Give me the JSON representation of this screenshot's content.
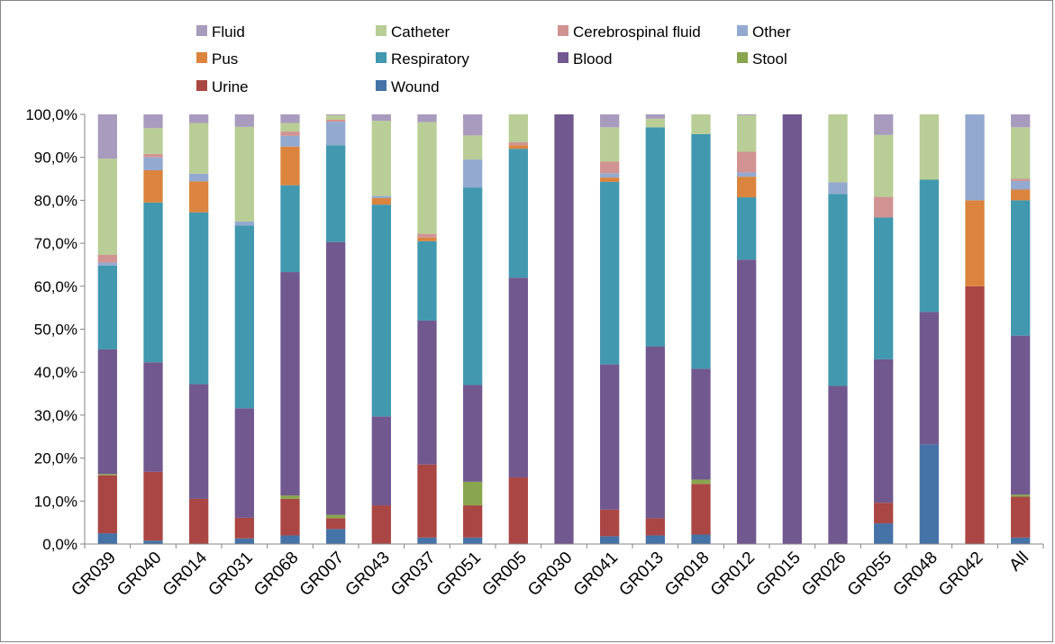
{
  "chart_data": {
    "type": "bar",
    "stacked": true,
    "normalized": true,
    "title": "",
    "xlabel": "",
    "ylabel": "",
    "ylim": [
      0,
      100
    ],
    "y_ticks": [
      "0,0%",
      "10,0%",
      "20,0%",
      "30,0%",
      "40,0%",
      "50,0%",
      "60,0%",
      "70,0%",
      "80,0%",
      "90,0%",
      "100,0%"
    ],
    "grid": false,
    "legend_position": "top",
    "categories": [
      "GR039",
      "GR040",
      "GR014",
      "GR031",
      "GR068",
      "GR007",
      "GR043",
      "GR037",
      "GR051",
      "GR005",
      "GR030",
      "GR041",
      "GR013",
      "GR018",
      "GR012",
      "GR015",
      "GR026",
      "GR055",
      "GR048",
      "GR042",
      "All"
    ],
    "legend": [
      "Fluid",
      "Catheter",
      "Cerebrospinal fluid",
      "Other",
      "Pus",
      "Respiratory",
      "Blood",
      "Stool",
      "Urine",
      "Wound"
    ],
    "series": [
      {
        "name": "Wound",
        "color": "#4572A7",
        "values": [
          2.5,
          0.8,
          0,
          1.3,
          2.0,
          3.5,
          0,
          1.5,
          1.5,
          0,
          0,
          1.8,
          2.0,
          2.2,
          0,
          0,
          0,
          4.8,
          23.2,
          0,
          1.5
        ]
      },
      {
        "name": "Urine",
        "color": "#AA4643",
        "values": [
          13.5,
          16.0,
          10.5,
          4.8,
          8.5,
          2.5,
          9.0,
          17.0,
          7.5,
          15.5,
          0,
          6.2,
          4.0,
          11.8,
          0,
          0,
          0,
          4.8,
          0,
          60.0,
          9.5
        ]
      },
      {
        "name": "Stool",
        "color": "#89A54E",
        "values": [
          0.3,
          0,
          0,
          0,
          0.8,
          0.8,
          0,
          0,
          5.5,
          0,
          0,
          0,
          0,
          1.0,
          0,
          0,
          0,
          0,
          0,
          0,
          0.5
        ]
      },
      {
        "name": "Blood",
        "color": "#71588F",
        "values": [
          29.0,
          25.5,
          26.7,
          25.5,
          52.0,
          63.5,
          20.7,
          33.5,
          22.5,
          46.5,
          100,
          33.8,
          40.0,
          25.8,
          66.2,
          100,
          36.8,
          33.4,
          30.8,
          0,
          37.0
        ]
      },
      {
        "name": "Respiratory",
        "color": "#4198AF",
        "values": [
          19.5,
          37.2,
          40.0,
          42.5,
          20.2,
          22.5,
          49.3,
          18.5,
          46.0,
          30.0,
          0,
          42.5,
          51.0,
          54.6,
          14.5,
          0,
          44.7,
          33.0,
          30.8,
          0,
          31.5
        ]
      },
      {
        "name": "Pus",
        "color": "#DB843D",
        "values": [
          0,
          7.5,
          7.2,
          0,
          9.0,
          0,
          1.5,
          0.8,
          0,
          0.8,
          0,
          1.0,
          0,
          0,
          4.8,
          0,
          0,
          0,
          0,
          20.0,
          2.5
        ]
      },
      {
        "name": "Other",
        "color": "#93A9CF",
        "values": [
          0.7,
          3.0,
          1.8,
          1.0,
          2.5,
          5.5,
          0.5,
          0,
          6.5,
          0,
          0,
          1.0,
          0,
          0,
          1.0,
          0,
          2.7,
          0,
          0,
          20.0,
          2.0
        ]
      },
      {
        "name": "Cerebrospinal fluid",
        "color": "#D19392",
        "values": [
          1.8,
          0.8,
          0,
          0,
          1.0,
          0.5,
          0,
          0.9,
          0,
          0.7,
          0,
          2.7,
          0,
          0,
          4.8,
          0,
          0,
          4.8,
          0,
          0,
          0.5
        ]
      },
      {
        "name": "Catheter",
        "color": "#B9CD96",
        "values": [
          22.4,
          6.0,
          11.8,
          22.0,
          2.0,
          1.0,
          17.5,
          26.0,
          5.6,
          6.5,
          0,
          8.0,
          2.0,
          4.6,
          8.5,
          0,
          15.8,
          14.4,
          15.2,
          0,
          12.0
        ]
      },
      {
        "name": "Fluid",
        "color": "#A99BBD",
        "values": [
          10.3,
          3.2,
          2.0,
          2.9,
          2.0,
          0.2,
          1.5,
          1.8,
          4.9,
          0,
          0,
          3.0,
          1.0,
          0,
          0.2,
          0,
          0,
          4.8,
          0,
          0,
          3.0
        ]
      }
    ]
  }
}
